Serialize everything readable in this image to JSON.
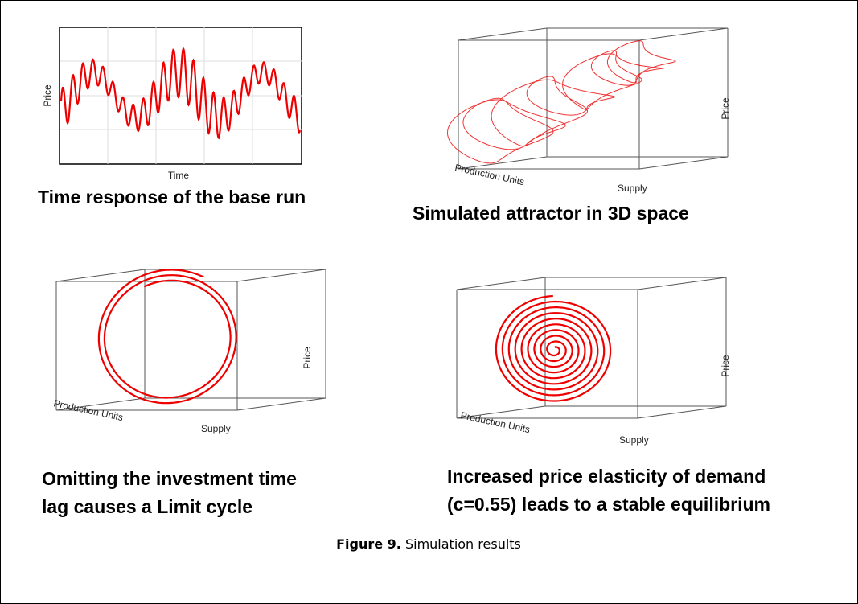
{
  "panels": [
    {
      "axis_labels": [
        "Time",
        "Price"
      ],
      "caption_lines": [
        "Time response of the base run"
      ]
    },
    {
      "axis_labels": [
        "Production Units",
        "Supply",
        "Price"
      ],
      "caption_lines": [
        "Simulated attractor in 3D space"
      ]
    },
    {
      "axis_labels": [
        "Production Units",
        "Supply",
        "Price"
      ],
      "caption_lines": [
        "Omitting the investment time",
        "lag causes a Limit cycle"
      ]
    },
    {
      "axis_labels": [
        "Production Units",
        "Supply",
        "Price"
      ],
      "caption_lines": [
        "Increased price elasticity of demand",
        "(c=0.55) leads to a stable equilibrium"
      ]
    }
  ],
  "figure_caption": {
    "label": "Figure 9.",
    "text": "Simulation results"
  }
}
